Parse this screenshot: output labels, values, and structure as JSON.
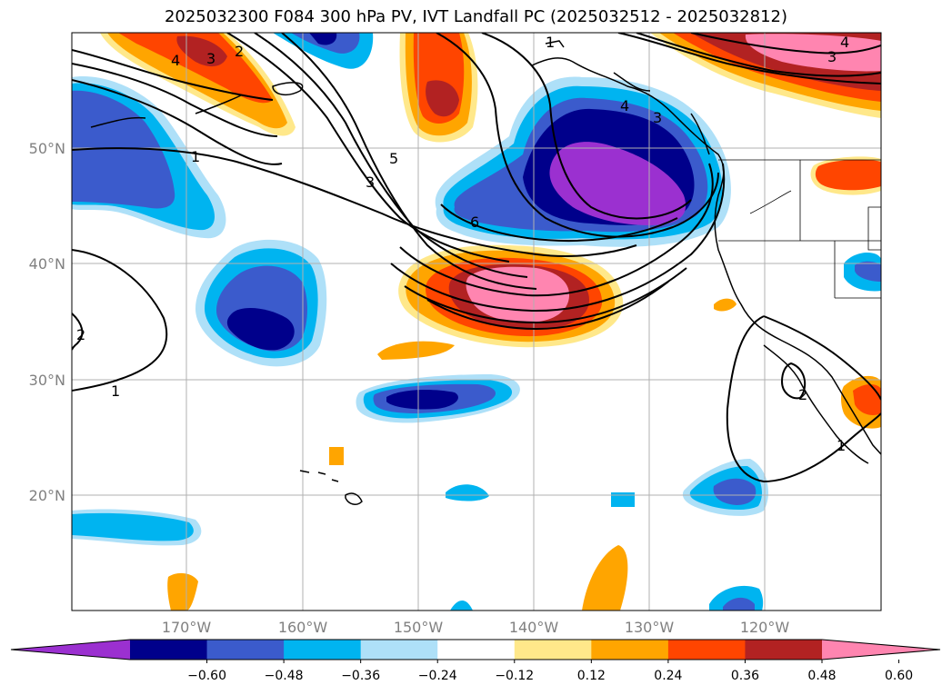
{
  "title": "2025032300 F084 300 hPa PV, IVT Landfall PC (2025032512 - 2025032812)",
  "lat_labels": [
    "50°N",
    "40°N",
    "30°N",
    "20°N"
  ],
  "lon_labels": [
    "170°W",
    "160°W",
    "150°W",
    "140°W",
    "130°W",
    "120°W"
  ],
  "colorbar": {
    "ticks": [
      "−0.60",
      "−0.48",
      "−0.36",
      "−0.24",
      "−0.12",
      "0.12",
      "0.24",
      "0.36",
      "0.48",
      "0.60"
    ],
    "colors": [
      "#9b30d0",
      "#00008b",
      "#3b5bcc",
      "#00b4f0",
      "#aee0f8",
      "#ffffff",
      "#ffe88a",
      "#ffa500",
      "#ff4500",
      "#b22222",
      "#ff85b0"
    ]
  },
  "contour_labels": [
    "4",
    "3",
    "2",
    "1",
    "5",
    "3",
    "6",
    "4",
    "3",
    "1",
    "2",
    "1",
    "2",
    "1",
    "4",
    "3"
  ]
}
